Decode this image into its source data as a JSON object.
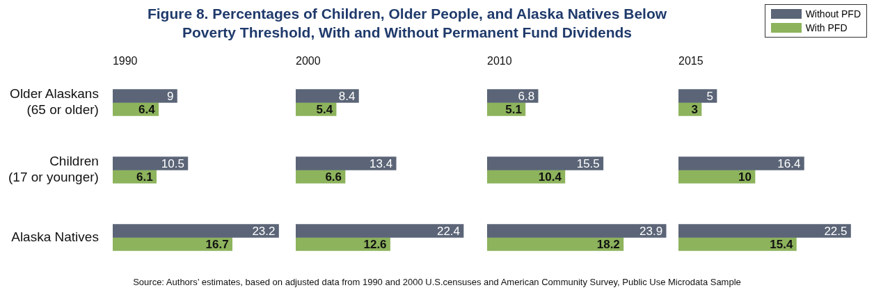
{
  "chart_data": [
    {
      "type": "other",
      "title": "Figure 8. Percentages of Children, Older People, and Alaska Natives Below Poverty Threshold, With and Without Permanent Fund Dividends",
      "annotations": [
        "Source: Authors’ estimates, based on adjusted data from 1990 and 2000 U.S.censuses and  American Community Survey, Public Use Microdata Sample"
      ]
    },
    {
      "type": "bar",
      "orientation": "horizontal",
      "title": "1990",
      "categories": [
        "Older Alaskans (65 or older)",
        "Children (17 or younger)",
        "Alaska Natives"
      ],
      "tick_labels": "y",
      "data_labels": true,
      "series": [
        {
          "color": "#5b6577",
          "values": [
            9,
            10.5,
            23.2
          ]
        },
        {
          "color": "#8db35c",
          "values": [
            6.4,
            6.1,
            16.7
          ]
        }
      ]
    },
    {
      "type": "bar",
      "orientation": "horizontal",
      "title": "2000",
      "categories": [
        null,
        null,
        null
      ],
      "tick_labels": false,
      "data_labels": true,
      "series": [
        {
          "color": "#5b6577",
          "values": [
            8.4,
            13.4,
            22.4
          ]
        },
        {
          "color": "#8db35c",
          "values": [
            5.4,
            6.6,
            12.6
          ]
        }
      ]
    },
    {
      "type": "bar",
      "orientation": "horizontal",
      "title": "2010",
      "categories": [
        null,
        null,
        null
      ],
      "tick_labels": false,
      "data_labels": true,
      "series": [
        {
          "color": "#5b6577",
          "values": [
            6.8,
            15.5,
            23.9
          ]
        },
        {
          "color": "#8db35c",
          "values": [
            5.1,
            10.4,
            18.2
          ]
        }
      ]
    },
    {
      "type": "bar",
      "orientation": "horizontal",
      "title": "2015",
      "categories": [
        null,
        null,
        null
      ],
      "tick_labels": false,
      "data_labels": true,
      "legend": "top right",
      "series": [
        {
          "name": "Without PFD",
          "color": "#5b6577",
          "values": [
            5,
            16.4,
            22.5
          ]
        },
        {
          "name": "With PFD",
          "color": "#8db35c",
          "values": [
            3,
            10,
            15.4
          ]
        }
      ]
    }
  ]
}
